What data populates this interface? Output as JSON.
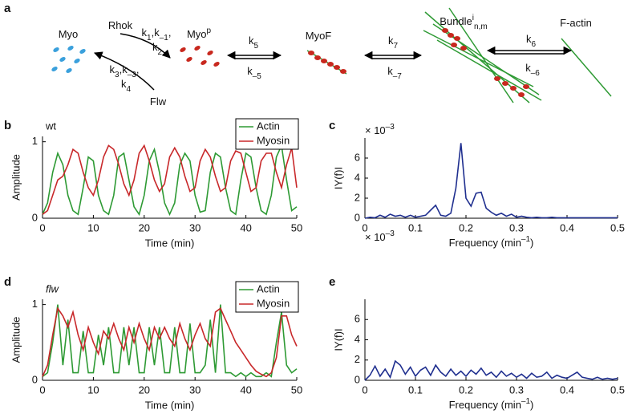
{
  "panel_a": {
    "panel_label": "a",
    "labels": {
      "myo": [
        "Myo"
      ],
      "rhok": [
        "Rhok"
      ],
      "k1": [
        "k",
        {
          "sub": "1"
        },
        ",k",
        {
          "sub": "–1"
        },
        ","
      ],
      "k2": [
        "k",
        {
          "sub": "2"
        }
      ],
      "myop": [
        "Myo",
        {
          "sup": "p"
        }
      ],
      "k5": [
        "k",
        {
          "sub": "5"
        }
      ],
      "km5": [
        "k",
        {
          "sub": "–5"
        }
      ],
      "myof": [
        "MyoF"
      ],
      "k7": [
        "k",
        {
          "sub": "7"
        }
      ],
      "km7": [
        "k",
        {
          "sub": "–7"
        }
      ],
      "bundle": [
        "Bundle",
        {
          "sup": "i"
        },
        {
          "sub": "n,m"
        }
      ],
      "factin": [
        "F-actin"
      ],
      "k6": [
        "k",
        {
          "sub": "6"
        }
      ],
      "km6": [
        "k",
        {
          "sub": "–6"
        }
      ],
      "k3": [
        "k",
        {
          "sub": "3"
        },
        ",k",
        {
          "sub": "–3"
        },
        ","
      ],
      "k4": [
        "k",
        {
          "sub": "4"
        }
      ],
      "flw": [
        "Flw"
      ]
    }
  },
  "chart_data": [
    {
      "type": "line",
      "panel_label": "b",
      "annotation": "wt",
      "annotation_style": "normal",
      "xlabel": "Time (min)",
      "ylabel": "Amplitude",
      "x": [
        0,
        1,
        2,
        3,
        4,
        5,
        6,
        7,
        8,
        9,
        10,
        11,
        12,
        13,
        14,
        15,
        16,
        17,
        18,
        19,
        20,
        21,
        22,
        23,
        24,
        25,
        26,
        27,
        28,
        29,
        30,
        31,
        32,
        33,
        34,
        35,
        36,
        37,
        38,
        39,
        40,
        41,
        42,
        43,
        44,
        45,
        46,
        47,
        48,
        49,
        50
      ],
      "series": [
        {
          "name": "Actin",
          "color": "#2e9a34",
          "values": [
            0.05,
            0.2,
            0.6,
            0.85,
            0.7,
            0.3,
            0.1,
            0.05,
            0.4,
            0.8,
            0.75,
            0.3,
            0.1,
            0.05,
            0.3,
            0.8,
            0.85,
            0.5,
            0.15,
            0.05,
            0.3,
            0.75,
            0.9,
            0.6,
            0.2,
            0.05,
            0.2,
            0.7,
            0.85,
            0.75,
            0.3,
            0.08,
            0.1,
            0.6,
            0.85,
            0.8,
            0.4,
            0.1,
            0.05,
            0.5,
            0.85,
            0.8,
            0.4,
            0.1,
            0.05,
            0.3,
            0.8,
            0.95,
            0.5,
            0.1,
            0.15
          ]
        },
        {
          "name": "Myosin",
          "color": "#c8282a",
          "values": [
            0.05,
            0.1,
            0.3,
            0.5,
            0.55,
            0.7,
            0.9,
            0.85,
            0.6,
            0.4,
            0.3,
            0.5,
            0.8,
            0.95,
            0.9,
            0.7,
            0.45,
            0.3,
            0.5,
            0.85,
            0.95,
            0.75,
            0.5,
            0.35,
            0.45,
            0.8,
            0.92,
            0.8,
            0.55,
            0.35,
            0.4,
            0.75,
            0.9,
            0.8,
            0.55,
            0.35,
            0.4,
            0.75,
            0.88,
            0.85,
            0.6,
            0.35,
            0.4,
            0.75,
            0.85,
            0.85,
            0.6,
            0.4,
            0.7,
            0.92,
            0.4
          ]
        }
      ],
      "xlim": [
        0,
        50
      ],
      "ylim": [
        0,
        1.07
      ],
      "xticks": [
        0,
        10,
        20,
        30,
        40,
        50
      ],
      "yticks": [
        0,
        1
      ],
      "legend": "upper right"
    },
    {
      "type": "line",
      "panel_label": "c",
      "xlabel": [
        "Frequency (min",
        {
          "sup": "–1"
        },
        ")"
      ],
      "ylabel": "IY(f)I",
      "scale_label": [
        "× 10",
        {
          "sup": "–3"
        }
      ],
      "x": [
        0,
        0.01,
        0.02,
        0.03,
        0.04,
        0.05,
        0.06,
        0.07,
        0.08,
        0.09,
        0.1,
        0.11,
        0.12,
        0.13,
        0.14,
        0.15,
        0.16,
        0.17,
        0.18,
        0.19,
        0.2,
        0.21,
        0.22,
        0.23,
        0.24,
        0.25,
        0.26,
        0.27,
        0.28,
        0.29,
        0.3,
        0.31,
        0.32,
        0.33,
        0.34,
        0.35,
        0.36,
        0.37,
        0.38,
        0.39,
        0.4,
        0.41,
        0.42,
        0.43,
        0.44,
        0.45,
        0.46,
        0.47,
        0.48,
        0.49,
        0.5
      ],
      "series": [
        {
          "color": "#1f2f8f",
          "values": [
            0,
            0.1,
            0.05,
            0.3,
            0.1,
            0.4,
            0.2,
            0.3,
            0.1,
            0.3,
            0.1,
            0.2,
            0.3,
            0.8,
            1.3,
            0.3,
            0.2,
            0.5,
            3.0,
            7.5,
            2.0,
            1.2,
            2.5,
            2.6,
            1.0,
            0.6,
            0.3,
            0.5,
            0.2,
            0.4,
            0.1,
            0.2,
            0.1,
            0.05,
            0.1,
            0.05,
            0.05,
            0.1,
            0.05,
            0.05,
            0.05,
            0.05,
            0.05,
            0.05,
            0.05,
            0.05,
            0.05,
            0.05,
            0.05,
            0.05,
            0.05
          ]
        }
      ],
      "xlim": [
        0,
        0.5
      ],
      "ylim": [
        0,
        8
      ],
      "xticks": [
        0,
        0.1,
        0.2,
        0.3,
        0.4,
        0.5
      ],
      "yticks": [
        0,
        2,
        4,
        6
      ]
    },
    {
      "type": "line",
      "panel_label": "d",
      "annotation": "flw",
      "annotation_style": "italic",
      "xlabel": "Time (min)",
      "ylabel": "Amplitude",
      "x": [
        0,
        1,
        2,
        3,
        4,
        5,
        6,
        7,
        8,
        9,
        10,
        11,
        12,
        13,
        14,
        15,
        16,
        17,
        18,
        19,
        20,
        21,
        22,
        23,
        24,
        25,
        26,
        27,
        28,
        29,
        30,
        31,
        32,
        33,
        34,
        35,
        36,
        37,
        38,
        39,
        40,
        41,
        42,
        43,
        44,
        45,
        46,
        47,
        48,
        49,
        50
      ],
      "series": [
        {
          "name": "Actin",
          "color": "#2e9a34",
          "values": [
            0.05,
            0.1,
            0.5,
            1.0,
            0.2,
            0.8,
            0.1,
            0.1,
            0.65,
            0.1,
            0.1,
            0.6,
            0.2,
            0.7,
            0.1,
            0.1,
            0.7,
            0.2,
            0.7,
            0.1,
            0.1,
            0.7,
            0.2,
            0.7,
            0.1,
            0.1,
            0.7,
            0.1,
            0.1,
            0.75,
            0.1,
            0.1,
            0.2,
            0.8,
            0.1,
            1.0,
            0.1,
            0.1,
            0.05,
            0.1,
            0.05,
            0.1,
            0.05,
            0.05,
            0.1,
            0.05,
            0.5,
            0.9,
            0.2,
            0.1,
            0.15
          ]
        },
        {
          "name": "Myosin",
          "color": "#c8282a",
          "values": [
            0.05,
            0.2,
            0.6,
            0.95,
            0.85,
            0.7,
            0.9,
            0.6,
            0.4,
            0.7,
            0.5,
            0.35,
            0.65,
            0.55,
            0.75,
            0.55,
            0.4,
            0.7,
            0.5,
            0.75,
            0.55,
            0.4,
            0.7,
            0.55,
            0.7,
            0.55,
            0.45,
            0.75,
            0.55,
            0.4,
            0.6,
            0.75,
            0.55,
            0.45,
            0.9,
            0.95,
            0.8,
            0.65,
            0.5,
            0.4,
            0.3,
            0.2,
            0.12,
            0.08,
            0.05,
            0.1,
            0.3,
            0.85,
            0.85,
            0.6,
            0.45
          ]
        }
      ],
      "xlim": [
        0,
        50
      ],
      "ylim": [
        0,
        1.07
      ],
      "xticks": [
        0,
        10,
        20,
        30,
        40,
        50
      ],
      "yticks": [
        0,
        1
      ],
      "legend": "upper right"
    },
    {
      "type": "line",
      "panel_label": "e",
      "xlabel": [
        "Frequency (min",
        {
          "sup": "–1"
        },
        ")"
      ],
      "ylabel": "IY(f)I",
      "scale_label": [
        "× 10",
        {
          "sup": "–3"
        }
      ],
      "x": [
        0,
        0.01,
        0.02,
        0.03,
        0.04,
        0.05,
        0.06,
        0.07,
        0.08,
        0.09,
        0.1,
        0.11,
        0.12,
        0.13,
        0.14,
        0.15,
        0.16,
        0.17,
        0.18,
        0.19,
        0.2,
        0.21,
        0.22,
        0.23,
        0.24,
        0.25,
        0.26,
        0.27,
        0.28,
        0.29,
        0.3,
        0.31,
        0.32,
        0.33,
        0.34,
        0.35,
        0.36,
        0.37,
        0.38,
        0.39,
        0.4,
        0.41,
        0.42,
        0.43,
        0.44,
        0.45,
        0.46,
        0.47,
        0.48,
        0.49,
        0.5
      ],
      "series": [
        {
          "color": "#1f2f8f",
          "values": [
            0,
            0.5,
            1.4,
            0.4,
            1.1,
            0.3,
            1.9,
            1.5,
            0.6,
            1.3,
            0.4,
            1.0,
            1.3,
            0.5,
            1.5,
            0.8,
            0.4,
            1.1,
            0.5,
            0.9,
            0.4,
            1.0,
            0.6,
            1.2,
            0.5,
            0.8,
            0.3,
            0.9,
            0.4,
            0.7,
            0.3,
            0.6,
            0.2,
            0.7,
            0.3,
            0.4,
            0.8,
            0.2,
            0.5,
            0.3,
            0.2,
            0.5,
            0.8,
            0.3,
            0.2,
            0.1,
            0.3,
            0.1,
            0.2,
            0.1,
            0.2
          ]
        }
      ],
      "xlim": [
        0,
        0.5
      ],
      "ylim": [
        0,
        8
      ],
      "xticks": [
        0,
        0.1,
        0.2,
        0.3,
        0.4,
        0.5
      ],
      "yticks": [
        0,
        2,
        4,
        6
      ]
    }
  ]
}
